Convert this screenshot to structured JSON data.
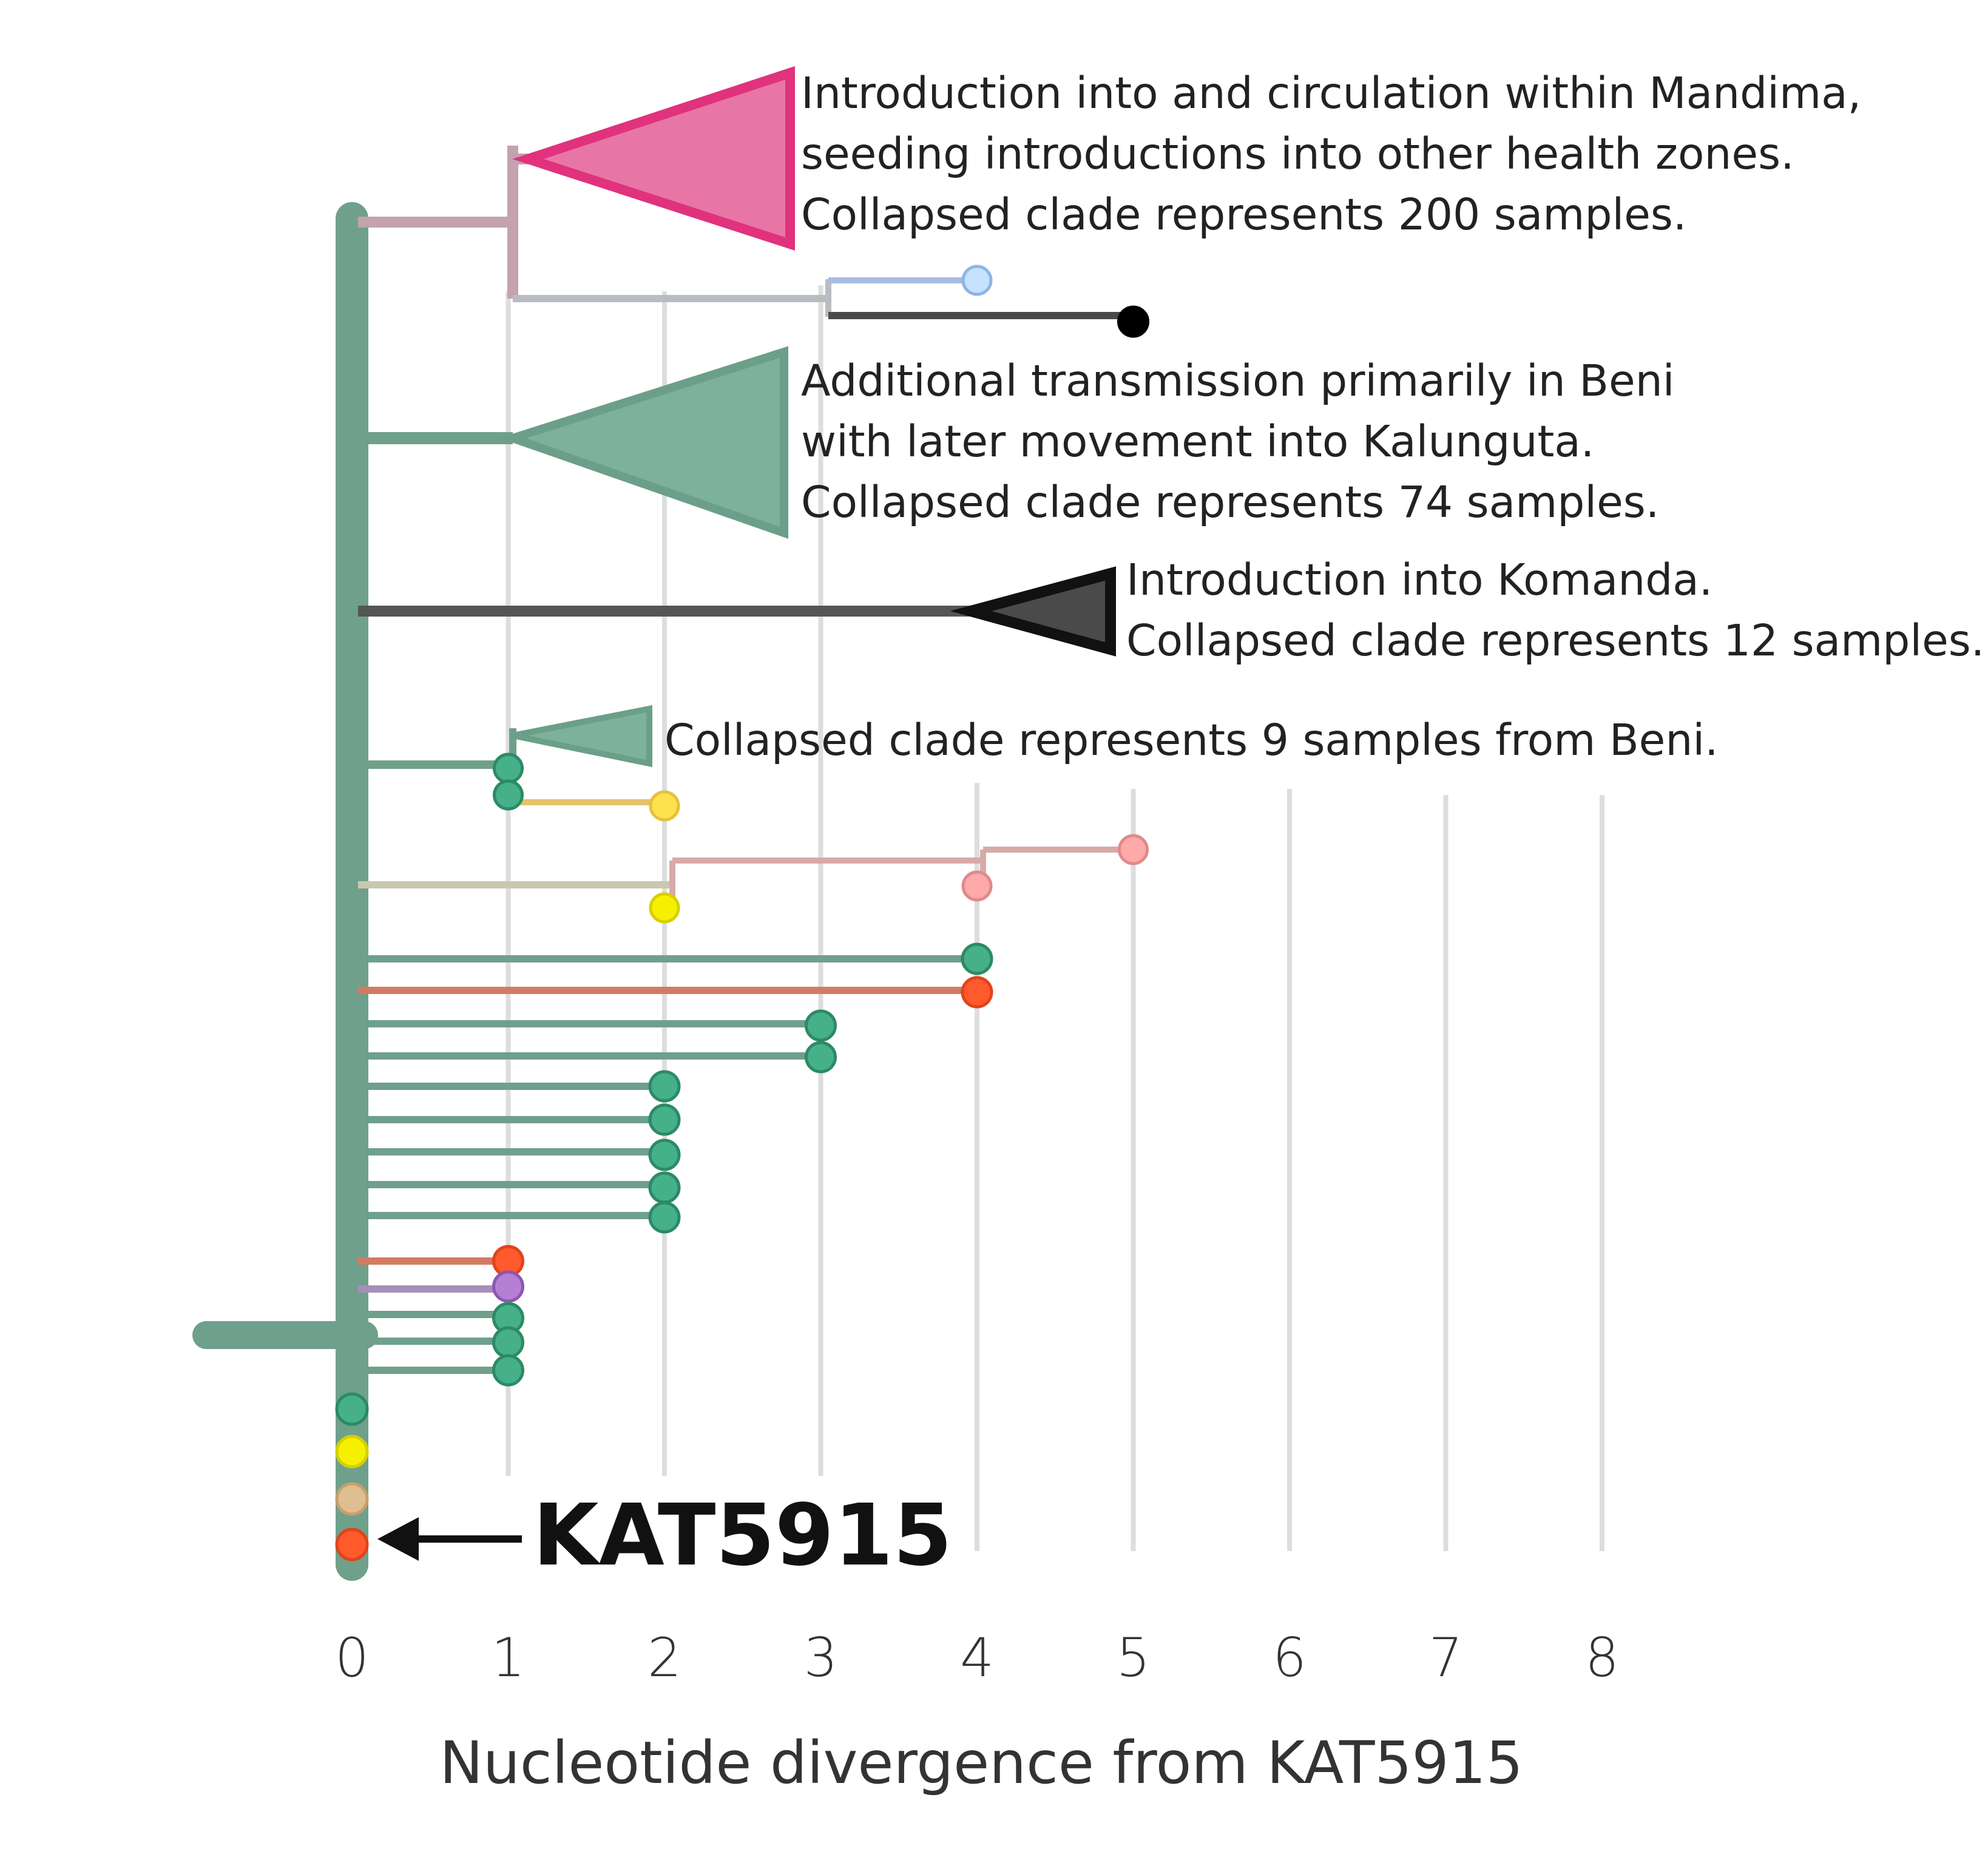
{
  "colors": {
    "trunk": "#6fa08c",
    "grid": "#dddddd",
    "mandima_fill": "#e776a6",
    "mandima_stroke": "#e0327d",
    "mandima_branch": "#c4a2ae",
    "beni_fill": "#7cb19c",
    "beni_stroke": "#6b9f89",
    "komanda_fill": "#4a4a4a",
    "komanda_stroke": "#111111",
    "tip_green": "#45b089",
    "tip_red": "#ff5a2c",
    "tip_yellow": "#f4f000",
    "tip_gold": "#ffe14d",
    "tip_pink": "#ffa9a9",
    "tip_purple": "#b57fd4",
    "tip_tan": "#dfbe92",
    "tip_lightblue": "#c5e2ff",
    "tip_black": "#000000"
  },
  "axis": {
    "label": "Nucleotide divergence from KAT5915",
    "ticks": [
      "0",
      "1",
      "2",
      "3",
      "4",
      "5",
      "6",
      "7",
      "8"
    ]
  },
  "annotations": {
    "mandima": [
      "Introduction into and circulation within Mandima,",
      "seeding introductions into other health zones.",
      "Collapsed clade represents 200 samples."
    ],
    "beni": [
      "Additional transmission primarily in Beni",
      "with later movement into Kalunguta.",
      "Collapsed clade represents 74 samples."
    ],
    "komanda": [
      "Introduction into Komanda.",
      "Collapsed clade represents 12 samples."
    ],
    "small_beni": "Collapsed clade represents 9 samples from Beni."
  },
  "focal_sample": {
    "label": "KAT5915",
    "arrow": "left-arrow"
  }
}
